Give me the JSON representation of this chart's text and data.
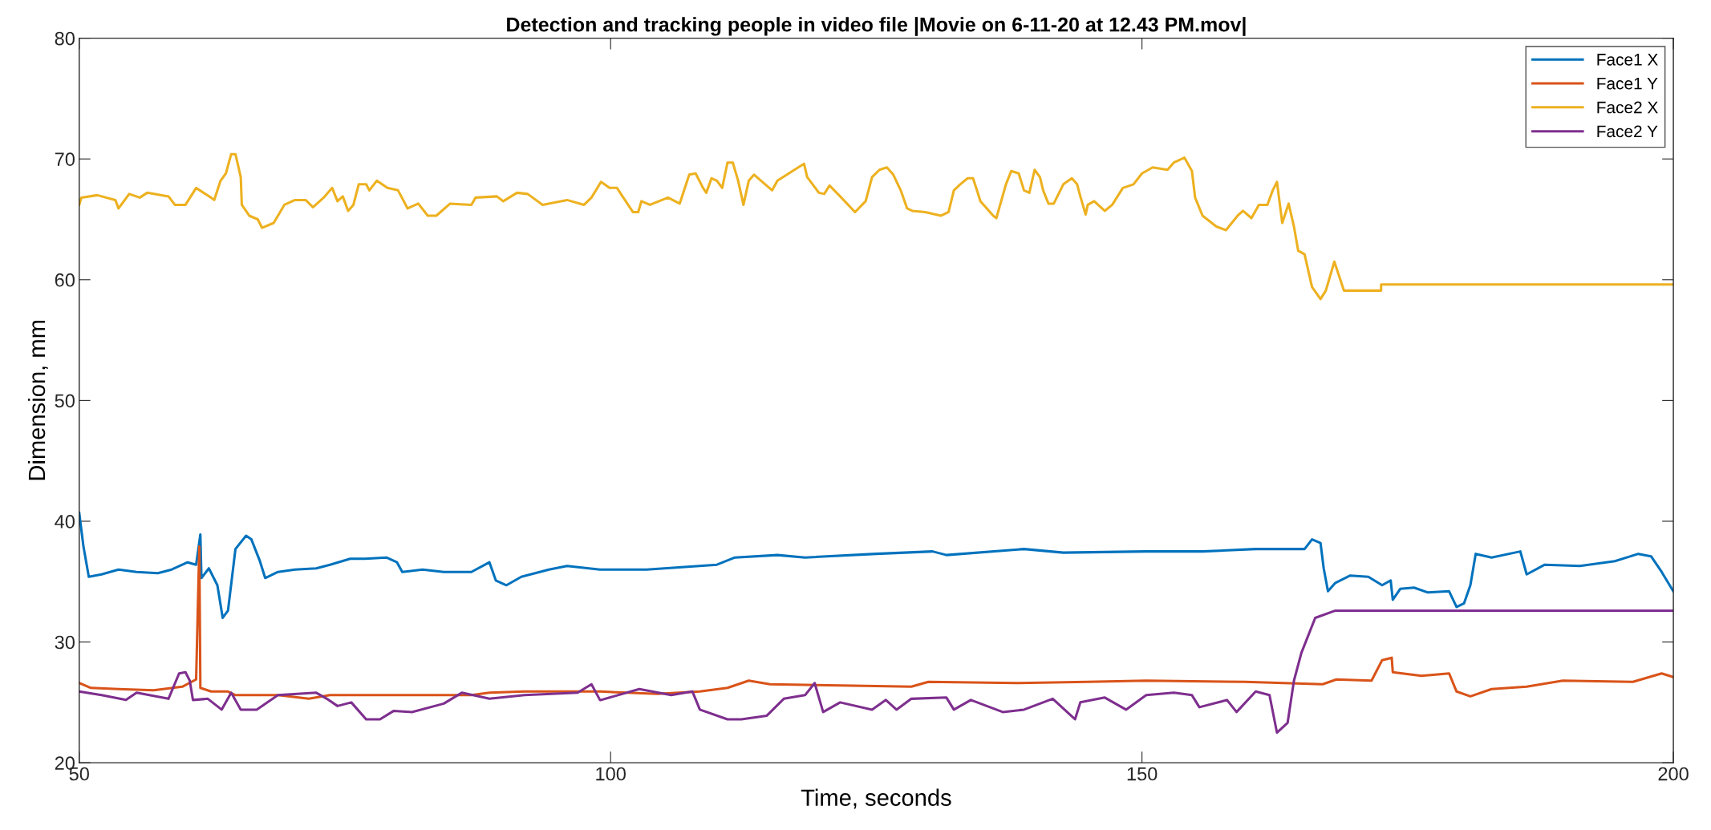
{
  "chart_data": {
    "type": "line",
    "title": "Detection and tracking people in video file |Movie on 6-11-20 at 12.43 PM.mov|",
    "xlabel": "Time, seconds",
    "ylabel": "Dimension, mm",
    "xlim": [
      50,
      200
    ],
    "xticks": [
      50,
      100,
      150,
      200
    ],
    "ylim": [
      20,
      80
    ],
    "yticks": [
      20,
      30,
      40,
      50,
      60,
      70,
      80
    ],
    "grid": false,
    "legend": "top right",
    "marker": "none",
    "line_style": "solid",
    "series": [
      {
        "name": "Face1 X",
        "color": "#0072bd",
        "x": [
          50.0,
          50.4,
          50.9,
          52.1,
          53.7,
          55.4,
          57.4,
          58.7,
          60.2,
          61.0,
          61.4,
          61.5,
          62.2,
          63.0,
          63.5,
          64.0,
          64.7,
          65.7,
          66.2,
          67.0,
          67.5,
          68.7,
          70.3,
          72.3,
          73.6,
          75.5,
          76.9,
          78.9,
          79.9,
          80.4,
          82.3,
          84.3,
          86.9,
          88.6,
          89.2,
          90.2,
          91.6,
          94.2,
          95.9,
          99.0,
          103.4,
          110.0,
          111.7,
          115.7,
          118.3,
          125.0,
          130.3,
          131.6,
          138.9,
          142.6,
          150.4,
          155.7,
          160.7,
          165.3,
          166.0,
          166.8,
          167.1,
          167.5,
          168.2,
          169.6,
          171.3,
          172.6,
          173.4,
          173.6,
          174.3,
          175.6,
          176.9,
          178.9,
          179.6,
          180.3,
          180.9,
          181.4,
          182.9,
          185.6,
          186.2,
          187.9,
          191.2,
          194.5,
          196.7,
          197.9,
          198.9,
          200.0
        ],
        "values": [
          40.7,
          37.9,
          35.4,
          35.6,
          36.0,
          35.8,
          35.7,
          36.0,
          36.6,
          36.4,
          38.9,
          35.3,
          36.1,
          34.7,
          32.0,
          32.6,
          37.7,
          38.8,
          38.5,
          36.7,
          35.3,
          35.8,
          36.0,
          36.1,
          36.4,
          36.9,
          36.9,
          37.0,
          36.6,
          35.8,
          36.0,
          35.8,
          35.8,
          36.6,
          35.1,
          34.7,
          35.4,
          36.0,
          36.3,
          36.0,
          36.0,
          36.4,
          37.0,
          37.2,
          37.0,
          37.3,
          37.5,
          37.2,
          37.7,
          37.4,
          37.5,
          37.5,
          37.7,
          37.7,
          38.5,
          38.2,
          36.1,
          34.2,
          34.9,
          35.5,
          35.4,
          34.7,
          35.1,
          33.5,
          34.4,
          34.5,
          34.1,
          34.2,
          32.9,
          33.2,
          34.7,
          37.3,
          37.0,
          37.5,
          35.6,
          36.4,
          36.3,
          36.7,
          37.3,
          37.1,
          35.8,
          34.2
        ]
      },
      {
        "name": "Face1 Y",
        "color": "#d95319",
        "x": [
          50.0,
          51.1,
          53.7,
          57.0,
          59.7,
          61.0,
          61.3,
          61.4,
          62.4,
          64.0,
          64.7,
          68.7,
          71.6,
          73.6,
          80.3,
          86.9,
          88.6,
          91.9,
          99.0,
          104.4,
          108.4,
          111.0,
          113.0,
          115.0,
          121.6,
          128.3,
          129.9,
          138.2,
          144.9,
          150.4,
          159.7,
          167.0,
          168.3,
          171.6,
          172.6,
          173.5,
          173.6,
          176.3,
          178.9,
          179.6,
          180.9,
          182.9,
          186.2,
          189.6,
          196.2,
          198.9,
          200.0
        ],
        "values": [
          26.6,
          26.2,
          26.1,
          26.0,
          26.3,
          26.9,
          37.9,
          26.2,
          25.9,
          25.9,
          25.6,
          25.6,
          25.3,
          25.6,
          25.6,
          25.6,
          25.8,
          25.9,
          25.9,
          25.7,
          25.9,
          26.2,
          26.8,
          26.5,
          26.4,
          26.3,
          26.7,
          26.6,
          26.7,
          26.8,
          26.7,
          26.5,
          26.9,
          26.8,
          28.5,
          28.7,
          27.5,
          27.2,
          27.4,
          25.9,
          25.5,
          26.1,
          26.3,
          26.8,
          26.7,
          27.4,
          27.1
        ]
      },
      {
        "name": "Face2 X",
        "color": "#edb120",
        "x": [
          50.0,
          50.2,
          51.7,
          53.4,
          53.7,
          54.7,
          55.7,
          56.4,
          58.4,
          59.0,
          60.0,
          61.0,
          62.4,
          62.7,
          63.3,
          63.8,
          64.3,
          64.7,
          65.2,
          65.3,
          66.0,
          66.8,
          67.2,
          68.3,
          69.3,
          70.3,
          71.3,
          72.0,
          73.0,
          73.8,
          74.3,
          74.8,
          75.3,
          75.8,
          76.3,
          77.0,
          77.3,
          78.0,
          79.0,
          80.0,
          80.9,
          81.9,
          82.8,
          83.6,
          84.9,
          86.9,
          87.3,
          89.3,
          89.9,
          91.2,
          92.2,
          93.6,
          95.9,
          97.5,
          98.2,
          99.1,
          99.9,
          100.6,
          102.1,
          102.6,
          102.9,
          103.7,
          105.4,
          106.5,
          107.4,
          108.0,
          108.7,
          109.0,
          109.5,
          110.0,
          110.5,
          111.0,
          111.5,
          112.0,
          112.5,
          113.0,
          113.5,
          115.2,
          115.7,
          117.3,
          118.2,
          118.5,
          119.6,
          120.1,
          120.6,
          121.6,
          123.0,
          124.0,
          124.6,
          125.3,
          126.0,
          126.6,
          127.3,
          127.9,
          128.4,
          129.6,
          131.1,
          131.8,
          132.3,
          132.9,
          133.6,
          134.1,
          134.4,
          134.8,
          136.0,
          136.3,
          137.2,
          137.7,
          138.4,
          138.9,
          139.4,
          139.9,
          140.4,
          140.7,
          141.2,
          141.7,
          142.6,
          143.4,
          143.9,
          144.2,
          144.7,
          144.9,
          145.5,
          146.5,
          147.2,
          148.2,
          149.2,
          150.0,
          151.0,
          152.4,
          153.0,
          154.0,
          154.7,
          155.0,
          155.7,
          157.0,
          157.9,
          159.0,
          159.5,
          160.3,
          161.0,
          161.8,
          162.3,
          162.7,
          163.2,
          163.8,
          164.3,
          164.7,
          165.3,
          166.0,
          166.8,
          167.3,
          168.1,
          169.0,
          172.5,
          172.5,
          200.0
        ],
        "values": [
          66.2,
          66.8,
          67.0,
          66.6,
          65.9,
          67.1,
          66.8,
          67.2,
          66.9,
          66.2,
          66.2,
          67.6,
          66.8,
          66.6,
          68.2,
          68.8,
          70.4,
          70.4,
          68.5,
          66.2,
          65.3,
          65.0,
          64.3,
          64.7,
          66.2,
          66.6,
          66.6,
          66.0,
          66.8,
          67.6,
          66.5,
          66.9,
          65.7,
          66.2,
          67.9,
          67.9,
          67.4,
          68.2,
          67.6,
          67.4,
          65.9,
          66.3,
          65.3,
          65.3,
          66.3,
          66.2,
          66.8,
          66.9,
          66.5,
          67.2,
          67.1,
          66.2,
          66.6,
          66.2,
          66.8,
          68.1,
          67.6,
          67.6,
          65.6,
          65.6,
          66.5,
          66.2,
          66.8,
          66.3,
          68.7,
          68.8,
          67.6,
          67.2,
          68.4,
          68.2,
          67.6,
          69.7,
          69.7,
          68.2,
          66.2,
          68.2,
          68.7,
          67.4,
          68.2,
          69.1,
          69.6,
          68.5,
          67.2,
          67.1,
          67.8,
          66.9,
          65.6,
          66.5,
          68.5,
          69.1,
          69.3,
          68.7,
          67.4,
          65.9,
          65.7,
          65.6,
          65.3,
          65.6,
          67.4,
          67.9,
          68.4,
          68.4,
          67.6,
          66.5,
          65.3,
          65.1,
          67.9,
          69.0,
          68.8,
          67.4,
          67.2,
          69.1,
          68.5,
          67.4,
          66.3,
          66.3,
          67.9,
          68.4,
          67.9,
          66.9,
          65.4,
          66.2,
          66.5,
          65.7,
          66.2,
          67.6,
          67.9,
          68.8,
          69.3,
          69.1,
          69.7,
          70.1,
          69.0,
          66.8,
          65.3,
          64.4,
          64.1,
          65.3,
          65.7,
          65.1,
          66.2,
          66.2,
          67.4,
          68.1,
          64.7,
          66.3,
          64.4,
          62.4,
          62.1,
          59.4,
          58.4,
          59.1,
          61.5,
          59.1,
          59.1,
          59.6,
          59.6
        ]
      },
      {
        "name": "Face2 Y",
        "color": "#7e2f8e",
        "x": [
          50.0,
          52.1,
          54.4,
          55.4,
          58.4,
          59.4,
          60.0,
          60.4,
          60.7,
          62.1,
          63.4,
          64.3,
          65.2,
          66.7,
          68.7,
          72.3,
          73.3,
          74.3,
          75.6,
          77.0,
          78.3,
          79.6,
          81.3,
          84.3,
          86.0,
          88.6,
          91.9,
          96.9,
          98.2,
          99.0,
          99.1,
          102.7,
          105.7,
          107.7,
          108.4,
          111.0,
          112.3,
          114.7,
          116.3,
          118.3,
          119.2,
          120.0,
          121.6,
          124.6,
          125.9,
          126.9,
          128.3,
          131.6,
          132.3,
          133.9,
          136.9,
          138.9,
          141.6,
          143.7,
          144.2,
          146.5,
          148.5,
          150.4,
          153.0,
          154.7,
          155.4,
          158.0,
          158.9,
          160.7,
          162.0,
          162.7,
          163.7,
          164.3,
          165.0,
          166.3,
          168.2,
          200.0
        ],
        "values": [
          25.9,
          25.6,
          25.2,
          25.8,
          25.3,
          27.4,
          27.5,
          26.8,
          25.2,
          25.3,
          24.4,
          25.8,
          24.4,
          24.4,
          25.6,
          25.8,
          25.3,
          24.7,
          25.0,
          23.6,
          23.6,
          24.3,
          24.2,
          24.9,
          25.8,
          25.3,
          25.6,
          25.8,
          26.5,
          25.2,
          25.2,
          26.1,
          25.6,
          25.9,
          24.4,
          23.6,
          23.6,
          23.9,
          25.3,
          25.6,
          26.6,
          24.2,
          25.0,
          24.4,
          25.2,
          24.4,
          25.3,
          25.4,
          24.4,
          25.2,
          24.2,
          24.4,
          25.3,
          23.6,
          25.0,
          25.4,
          24.4,
          25.6,
          25.8,
          25.6,
          24.6,
          25.2,
          24.2,
          25.9,
          25.6,
          22.5,
          23.3,
          26.8,
          29.1,
          32.0,
          32.6,
          32.6
        ]
      }
    ]
  }
}
